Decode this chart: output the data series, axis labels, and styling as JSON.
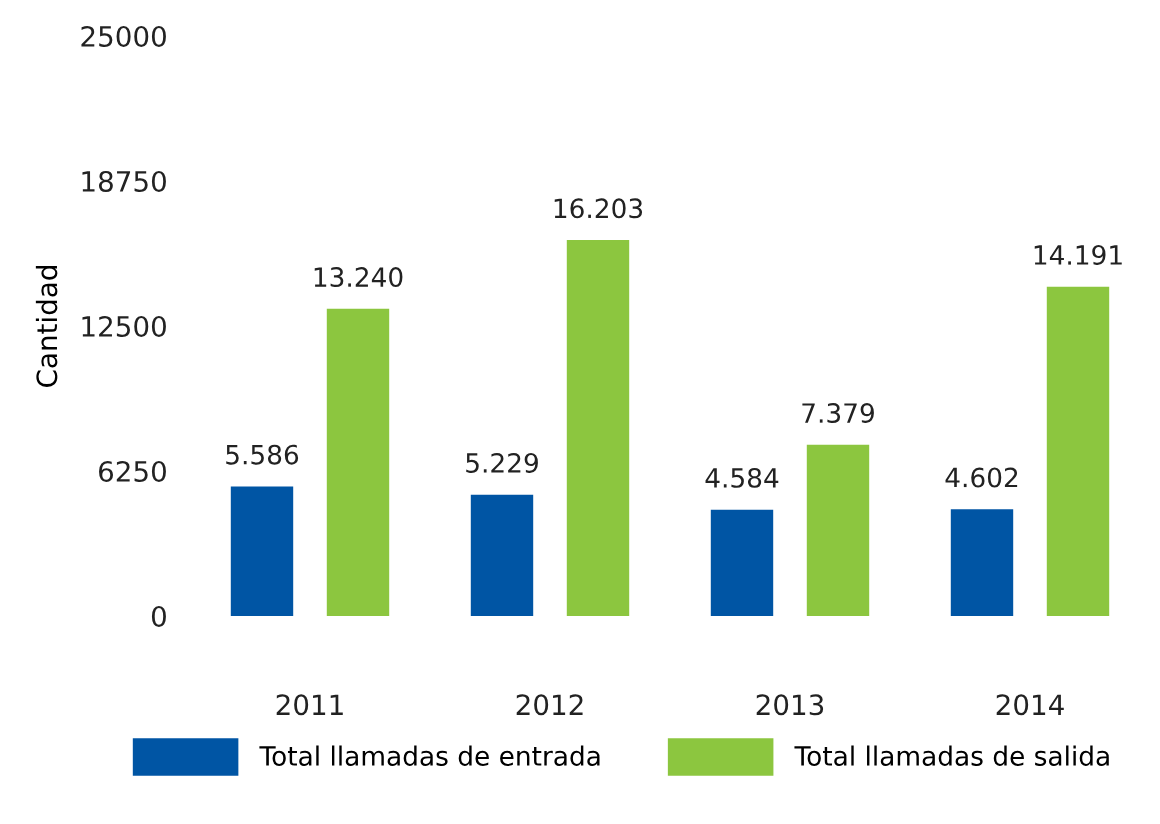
{
  "chart_data": {
    "type": "bar",
    "ylabel": "Cantidad",
    "categories": [
      "2011",
      "2012",
      "2013",
      "2014"
    ],
    "series": [
      {
        "name": "Total llamadas de entrada",
        "color": "#0055a4",
        "values": [
          5586,
          5229,
          4584,
          4602
        ],
        "value_labels": [
          "5.586",
          "5.229",
          "4.584",
          "4.602"
        ]
      },
      {
        "name": "Total llamadas de salida",
        "color": "#8cc63f",
        "values": [
          13240,
          16203,
          7379,
          14191
        ],
        "value_labels": [
          "13.240",
          "16.203",
          "7.379",
          "14.191"
        ]
      }
    ],
    "ylim": [
      0,
      25000
    ],
    "yticks": [
      0,
      6250,
      12500,
      18750,
      25000
    ],
    "grid": false,
    "legend": "bottom"
  }
}
